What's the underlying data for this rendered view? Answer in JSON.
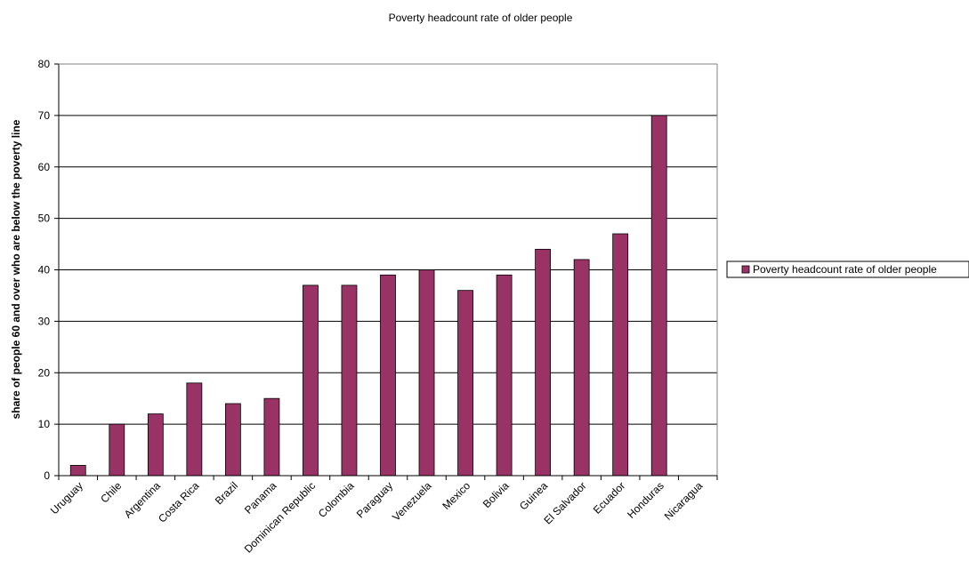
{
  "chart_data": {
    "type": "bar",
    "title": "Poverty headcount rate  of older people",
    "xlabel": "",
    "ylabel": "share of people 60  and over who are below the poverty  line",
    "ylim": [
      0,
      80
    ],
    "yticks": [
      0,
      10,
      20,
      30,
      40,
      50,
      60,
      70,
      80
    ],
    "grid": true,
    "legend_position": "right",
    "categories": [
      "Uruguay",
      "Chile",
      "Argentina",
      "Costa Rica",
      "Brazil",
      "Panama",
      "Dominican Republic",
      "Colombia",
      "Paraguay",
      "Venezuela",
      "Mexico",
      "Bolivia",
      "Guinea",
      "El Salvador",
      "Ecuador",
      "Honduras",
      "Nicaragua"
    ],
    "series": [
      {
        "name": "Poverty headcount rate of older people",
        "color": "#993366",
        "values": [
          2,
          10,
          12,
          18,
          14,
          15,
          37,
          37,
          39,
          40,
          36,
          39,
          44,
          42,
          47,
          70,
          0
        ]
      }
    ]
  }
}
